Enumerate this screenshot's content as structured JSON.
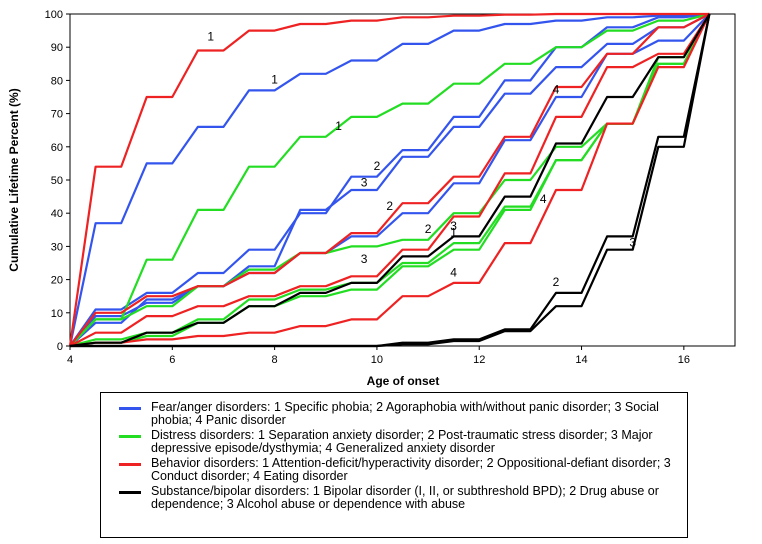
{
  "chart_data": {
    "type": "line",
    "title": "",
    "xlabel": "Age of onset",
    "ylabel": "Cumulative Lifetime Percent (%)",
    "xlim": [
      4,
      17
    ],
    "ylim": [
      0,
      100
    ],
    "x_ticks": [
      4,
      6,
      8,
      10,
      12,
      14,
      16
    ],
    "y_ticks": [
      0,
      10,
      20,
      30,
      40,
      50,
      60,
      70,
      80,
      90,
      100
    ],
    "colors": {
      "fear": "#3355ee",
      "distress": "#22dd22",
      "behavior": "#ee2222",
      "substance": "#000000"
    },
    "series": [
      {
        "group": "fear",
        "label": "1",
        "label_pos": [
          8,
          79
        ],
        "x": [
          4,
          4.5,
          5,
          5.5,
          6,
          6.5,
          7,
          7.5,
          8,
          8.5,
          9,
          9.5,
          10,
          10.5,
          11,
          11.5,
          12,
          12.5,
          13,
          13.5,
          14,
          14.5,
          15,
          15.5,
          16,
          16.5
        ],
        "y": [
          0,
          37,
          37,
          55,
          55,
          66,
          66,
          77,
          77,
          82,
          82,
          86,
          86,
          91,
          91,
          95,
          95,
          97,
          97,
          98,
          98,
          99,
          99,
          99.5,
          99.5,
          100
        ]
      },
      {
        "group": "fear",
        "label": "2",
        "label_pos": [
          10,
          53
        ],
        "x": [
          4,
          4.5,
          5,
          5.5,
          6,
          6.5,
          7,
          7.5,
          8,
          8.5,
          9,
          9.5,
          10,
          10.5,
          11,
          11.5,
          12,
          12.5,
          13,
          13.5,
          14,
          14.5,
          15,
          15.5,
          16,
          16.5
        ],
        "y": [
          0,
          11,
          11,
          16,
          16,
          22,
          22,
          29,
          29,
          40,
          40,
          51,
          51,
          59,
          59,
          69,
          69,
          80,
          80,
          90,
          90,
          96,
          96,
          99,
          99,
          100
        ]
      },
      {
        "group": "fear",
        "label": "3",
        "label_pos": [
          9.75,
          48
        ],
        "x": [
          4,
          4.5,
          5,
          5.5,
          6,
          6.5,
          7,
          7.5,
          8,
          8.5,
          9,
          9.5,
          10,
          10.5,
          11,
          11.5,
          12,
          12.5,
          13,
          13.5,
          14,
          14.5,
          15,
          15.5,
          16,
          16.5
        ],
        "y": [
          0,
          9,
          9,
          13,
          13,
          18,
          18,
          24,
          24,
          41,
          41,
          47,
          47,
          57,
          57,
          66,
          66,
          76,
          76,
          84,
          84,
          91,
          91,
          96,
          96,
          100
        ]
      },
      {
        "group": "fear",
        "label": "4",
        "label_pos": [
          13.5,
          76
        ],
        "x": [
          4,
          4.5,
          5,
          5.5,
          6,
          6.5,
          7,
          7.5,
          8,
          8.5,
          9,
          9.5,
          10,
          10.5,
          11,
          11.5,
          12,
          12.5,
          13,
          13.5,
          14,
          14.5,
          15,
          15.5,
          16,
          16.5
        ],
        "y": [
          0,
          7,
          7,
          14,
          14,
          18,
          18,
          22,
          22,
          28,
          28,
          33,
          33,
          40,
          40,
          49,
          49,
          62,
          62,
          75,
          75,
          88,
          88,
          92,
          92,
          100
        ]
      },
      {
        "group": "distress",
        "label": "1",
        "label_pos": [
          9.25,
          65
        ],
        "x": [
          4,
          4.5,
          5,
          5.5,
          6,
          6.5,
          7,
          7.5,
          8,
          8.5,
          9,
          9.5,
          10,
          10.5,
          11,
          11.5,
          12,
          12.5,
          13,
          13.5,
          14,
          14.5,
          15,
          15.5,
          16,
          16.5
        ],
        "y": [
          0,
          8,
          8,
          26,
          26,
          41,
          41,
          54,
          54,
          63,
          63,
          69,
          69,
          73,
          73,
          79,
          79,
          85,
          85,
          90,
          90,
          95,
          95,
          98,
          98,
          100
        ]
      },
      {
        "group": "distress",
        "label": "2",
        "label_pos": [
          11,
          34
        ],
        "x": [
          4,
          4.5,
          5,
          5.5,
          6,
          6.5,
          7,
          7.5,
          8,
          8.5,
          9,
          9.5,
          10,
          10.5,
          11,
          11.5,
          12,
          12.5,
          13,
          13.5,
          14,
          14.5,
          15,
          15.5,
          16,
          16.5
        ],
        "y": [
          0,
          8,
          8,
          12,
          12,
          18,
          18,
          23,
          23,
          28,
          28,
          30,
          30,
          32,
          32,
          40,
          40,
          50,
          50,
          60,
          60,
          67,
          67,
          87,
          87,
          100
        ]
      },
      {
        "group": "distress",
        "label": "3",
        "label_pos": [
          9.75,
          25
        ],
        "x": [
          4,
          4.5,
          5,
          5.5,
          6,
          6.5,
          7,
          7.5,
          8,
          8.5,
          9,
          9.5,
          10,
          10.5,
          11,
          11.5,
          12,
          12.5,
          13,
          13.5,
          14,
          14.5,
          15,
          15.5,
          16,
          16.5
        ],
        "y": [
          0,
          1,
          1,
          3,
          3,
          7,
          7,
          12,
          12,
          15,
          15,
          17,
          17,
          24,
          24,
          29,
          29,
          41,
          41,
          56,
          56,
          67,
          67,
          85,
          85,
          100
        ]
      },
      {
        "group": "distress",
        "label": "4",
        "label_pos": [
          13.25,
          43
        ],
        "x": [
          4,
          4.5,
          5,
          5.5,
          6,
          6.5,
          7,
          7.5,
          8,
          8.5,
          9,
          9.5,
          10,
          10.5,
          11,
          11.5,
          12,
          12.5,
          13,
          13.5,
          14,
          14.5,
          15,
          15.5,
          16,
          16.5
        ],
        "y": [
          0,
          2,
          2,
          4,
          4,
          8,
          8,
          14,
          14,
          17,
          17,
          19,
          19,
          25,
          25,
          31,
          31,
          42,
          42,
          56,
          56,
          67,
          67,
          85,
          85,
          100
        ]
      },
      {
        "group": "behavior",
        "label": "1",
        "label_pos": [
          6.75,
          92
        ],
        "x": [
          4,
          4.5,
          5,
          5.5,
          6,
          6.5,
          7,
          7.5,
          8,
          8.5,
          9,
          9.5,
          10,
          10.5,
          11,
          11.5,
          12,
          12.5,
          13,
          13.5,
          14,
          14.5,
          15,
          15.5,
          16,
          16.5
        ],
        "y": [
          0,
          54,
          54,
          75,
          75,
          89,
          89,
          95,
          95,
          97,
          97,
          98,
          98,
          99,
          99,
          99.5,
          99.5,
          99.8,
          99.8,
          100,
          100,
          100,
          100,
          100,
          100,
          100
        ]
      },
      {
        "group": "behavior",
        "label": "2",
        "label_pos": [
          10.25,
          41
        ],
        "x": [
          4,
          4.5,
          5,
          5.5,
          6,
          6.5,
          7,
          7.5,
          8,
          8.5,
          9,
          9.5,
          10,
          10.5,
          11,
          11.5,
          12,
          12.5,
          13,
          13.5,
          14,
          14.5,
          15,
          15.5,
          16,
          16.5
        ],
        "y": [
          0,
          10,
          10,
          15,
          15,
          18,
          18,
          22,
          22,
          28,
          28,
          34,
          34,
          43,
          43,
          51,
          51,
          63,
          63,
          78,
          78,
          88,
          88,
          96,
          96,
          100
        ]
      },
      {
        "group": "behavior",
        "label": "3",
        "label_pos": [
          11.5,
          35
        ],
        "x": [
          4,
          4.5,
          5,
          5.5,
          6,
          6.5,
          7,
          7.5,
          8,
          8.5,
          9,
          9.5,
          10,
          10.5,
          11,
          11.5,
          12,
          12.5,
          13,
          13.5,
          14,
          14.5,
          15,
          15.5,
          16,
          16.5
        ],
        "y": [
          0,
          4,
          4,
          9,
          9,
          12,
          12,
          15,
          15,
          18,
          18,
          21,
          21,
          29,
          29,
          39,
          39,
          52,
          52,
          69,
          69,
          84,
          84,
          88,
          88,
          100
        ]
      },
      {
        "group": "behavior",
        "label": "4",
        "label_pos": [
          11.5,
          21
        ],
        "x": [
          4,
          4.5,
          5,
          5.5,
          6,
          6.5,
          7,
          7.5,
          8,
          8.5,
          9,
          9.5,
          10,
          10.5,
          11,
          11.5,
          12,
          12.5,
          13,
          13.5,
          14,
          14.5,
          15,
          15.5,
          16,
          16.5
        ],
        "y": [
          0,
          1,
          1,
          2,
          2,
          3,
          3,
          4,
          4,
          6,
          6,
          8,
          8,
          15,
          15,
          19,
          19,
          31,
          31,
          47,
          47,
          67,
          67,
          84,
          84,
          100
        ]
      },
      {
        "group": "substance",
        "label": "1",
        "label_pos": [
          11.5,
          33
        ],
        "x": [
          4,
          4.5,
          5,
          5.5,
          6,
          6.5,
          7,
          7.5,
          8,
          8.5,
          9,
          9.5,
          10,
          10.5,
          11,
          11.5,
          12,
          12.5,
          13,
          13.5,
          14,
          14.5,
          15,
          15.5,
          16,
          16.5
        ],
        "y": [
          0,
          1,
          1,
          4,
          4,
          7,
          7,
          12,
          12,
          16,
          16,
          19,
          19,
          27,
          27,
          33,
          33,
          45,
          45,
          61,
          61,
          75,
          75,
          87,
          87,
          100
        ]
      },
      {
        "group": "substance",
        "label": "2",
        "label_pos": [
          13.5,
          18
        ],
        "x": [
          4,
          4.5,
          5,
          5.5,
          6,
          6.5,
          7,
          7.5,
          8,
          8.5,
          9,
          9.5,
          10,
          10.5,
          11,
          11.5,
          12,
          12.5,
          13,
          13.5,
          14,
          14.5,
          15,
          15.5,
          16,
          16.5
        ],
        "y": [
          0,
          0,
          0,
          0,
          0,
          0,
          0,
          0,
          0,
          0,
          0,
          0,
          0,
          1,
          1,
          2,
          2,
          5,
          5,
          16,
          16,
          33,
          33,
          63,
          63,
          100
        ]
      },
      {
        "group": "substance",
        "label": "3",
        "label_pos": [
          15,
          30
        ],
        "x": [
          4,
          4.5,
          5,
          5.5,
          6,
          6.5,
          7,
          7.5,
          8,
          8.5,
          9,
          9.5,
          10,
          10.5,
          11,
          11.5,
          12,
          12.5,
          13,
          13.5,
          14,
          14.5,
          15,
          15.5,
          16,
          16.5
        ],
        "y": [
          0,
          0,
          0,
          0,
          0,
          0,
          0,
          0,
          0,
          0,
          0,
          0,
          0,
          0.5,
          0.5,
          1.5,
          1.5,
          4.5,
          4.5,
          12,
          12,
          29,
          29,
          60,
          60,
          100
        ]
      }
    ],
    "legend": [
      {
        "group": "fear",
        "text": "Fear/anger disorders: 1 Specific phobia; 2 Agoraphobia with/without panic disorder; 3 Social phobia; 4 Panic disorder"
      },
      {
        "group": "distress",
        "text": "Distress disorders: 1 Separation anxiety disorder; 2 Post-traumatic stress disorder; 3 Major depressive episode/dysthymia; 4 Generalized  anxiety disorder"
      },
      {
        "group": "behavior",
        "text": "Behavior disorders: 1 Attention-deficit/hyperactivity disorder; 2 Oppositional-defiant disorder; 3 Conduct disorder; 4 Eating disorder"
      },
      {
        "group": "substance",
        "text": "Substance/bipolar disorders: 1 Bipolar disorder (I, II, or subthreshold BPD); 2 Drug abuse or dependence; 3 Alcohol abuse or dependence with abuse"
      }
    ]
  }
}
